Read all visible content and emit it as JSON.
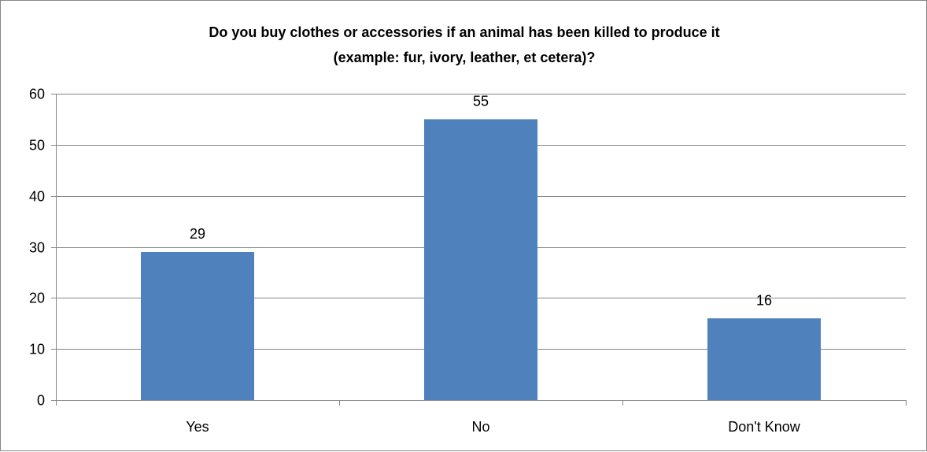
{
  "chart_data": {
    "type": "bar",
    "title": "Do you buy clothes or accessories if an animal has been killed to produce it",
    "subtitle": "(example: fur, ivory, leather, et cetera)?",
    "categories": [
      "Yes",
      "No",
      "Don't Know"
    ],
    "values": [
      29,
      55,
      16
    ],
    "data_labels": [
      "29",
      "55",
      "16"
    ],
    "ylim": [
      0,
      60
    ],
    "yticks": [
      0,
      10,
      20,
      30,
      40,
      50,
      60
    ],
    "ytick_labels": [
      "0",
      "10",
      "20",
      "30",
      "40",
      "50",
      "60"
    ],
    "grid": true,
    "legend": "none",
    "bar_color": "#4F81BD",
    "grid_color": "#868686"
  }
}
